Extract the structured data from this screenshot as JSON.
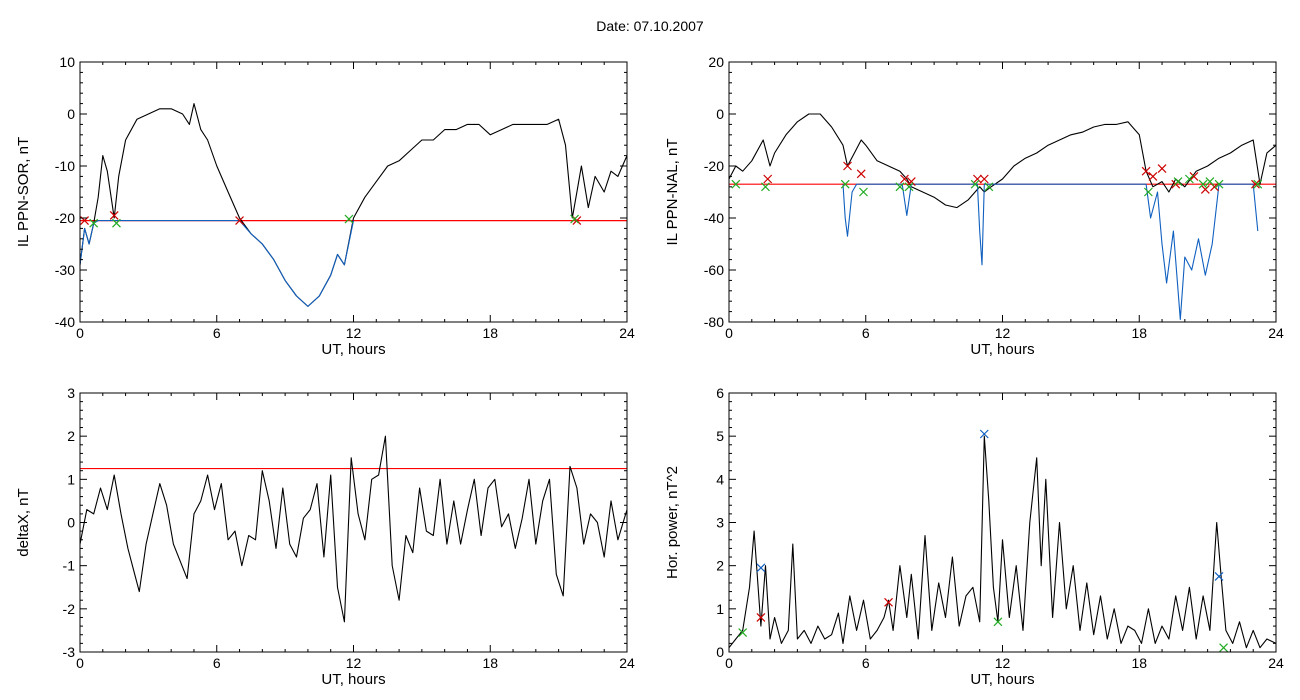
{
  "figure": {
    "title": "Date:  07.10.2007"
  },
  "chart_data": [
    {
      "type": "line",
      "ylabel": "IL PPN-SOR, nT",
      "xlabel": "UT, hours",
      "xlim": [
        0,
        24
      ],
      "ylim": [
        -40,
        10
      ],
      "xticks": [
        0,
        6,
        12,
        18,
        24
      ],
      "yticks": [
        -40,
        -30,
        -20,
        -10,
        0,
        10
      ],
      "threshold": -20.5,
      "series": [
        {
          "color": "#000000",
          "x": [
            0,
            0.2,
            0.4,
            0.6,
            0.8,
            1.0,
            1.2,
            1.5,
            1.7,
            2.0,
            2.5,
            3.0,
            3.5,
            4.0,
            4.5,
            4.8,
            5.0,
            5.3,
            5.6,
            6.0,
            6.5,
            7.0,
            7.5,
            8.0,
            8.5,
            9.0,
            9.5,
            10.0,
            10.5,
            11.0,
            11.3,
            11.6,
            12.0,
            12.5,
            13.0,
            13.5,
            14.0,
            14.5,
            15.0,
            15.5,
            16.0,
            16.5,
            17.0,
            17.5,
            18.0,
            18.5,
            19.0,
            19.5,
            20.0,
            20.5,
            21.0,
            21.3,
            21.6,
            21.8,
            22.0,
            22.3,
            22.6,
            23.0,
            23.3,
            23.6,
            24.0
          ],
          "y": [
            -29,
            -22,
            -25,
            -21,
            -16,
            -8,
            -11,
            -20,
            -12,
            -5,
            -1,
            0,
            1,
            1,
            0,
            -2,
            2,
            -3,
            -5,
            -10,
            -15,
            -20,
            -23,
            -25,
            -28,
            -32,
            -35,
            -37,
            -35,
            -31,
            -27,
            -29,
            -20,
            -16,
            -13,
            -10,
            -9,
            -7,
            -5,
            -5,
            -3,
            -3,
            -2,
            -2,
            -4,
            -3,
            -2,
            -2,
            -2,
            -2,
            -1,
            -6,
            -20,
            -15,
            -10,
            -18,
            -12,
            -15,
            -11,
            -12,
            -8
          ]
        },
        {
          "color": "#1060c0",
          "x": [
            0,
            0.2,
            0.4,
            0.6,
            0.8,
            7.0,
            7.5,
            8.0,
            8.5,
            9.0,
            9.5,
            10.0,
            10.5,
            11.0,
            11.3,
            11.6,
            12.0
          ],
          "y": [
            -29,
            -22,
            -25,
            -21,
            -20.5,
            -20.5,
            -23,
            -25,
            -28,
            -32,
            -35,
            -37,
            -35,
            -31,
            -27,
            -29,
            -20.5
          ]
        }
      ],
      "markers": [
        {
          "color": "#cc0000",
          "x": [
            0.2,
            1.5,
            7.0,
            21.8
          ],
          "y": [
            -20.5,
            -19.5,
            -20.5,
            -20.5
          ]
        },
        {
          "color": "#22aa22",
          "x": [
            0.6,
            1.6,
            11.8,
            21.7
          ],
          "y": [
            -21,
            -21,
            -20.2,
            -20.2
          ]
        }
      ]
    },
    {
      "type": "line",
      "ylabel": "IL PPN-NAL, nT",
      "xlabel": "UT, hours",
      "xlim": [
        0,
        24
      ],
      "ylim": [
        -80,
        20
      ],
      "xticks": [
        0,
        6,
        12,
        18,
        24
      ],
      "yticks": [
        -80,
        -60,
        -40,
        -20,
        0,
        20
      ],
      "threshold": -27,
      "series": [
        {
          "color": "#000000",
          "x": [
            0,
            0.3,
            0.6,
            1.0,
            1.5,
            1.8,
            2.0,
            2.5,
            3.0,
            3.5,
            4.0,
            4.5,
            5.0,
            5.2,
            5.5,
            5.8,
            6.0,
            6.5,
            7.0,
            7.5,
            7.8,
            8.0,
            8.5,
            9.0,
            9.5,
            10.0,
            10.5,
            11.0,
            11.2,
            11.5,
            12.0,
            12.5,
            13.0,
            13.5,
            14.0,
            14.5,
            15.0,
            15.5,
            16.0,
            16.5,
            17.0,
            17.5,
            18.0,
            18.3,
            18.6,
            19.0,
            19.3,
            19.6,
            20.0,
            20.5,
            21.0,
            21.5,
            22.0,
            22.5,
            23.0,
            23.3,
            23.6,
            24.0
          ],
          "y": [
            -25,
            -20,
            -22,
            -18,
            -10,
            -20,
            -15,
            -8,
            -3,
            0,
            0,
            -5,
            -12,
            -20,
            -15,
            -10,
            -12,
            -18,
            -20,
            -22,
            -25,
            -28,
            -30,
            -32,
            -35,
            -36,
            -33,
            -28,
            -30,
            -28,
            -25,
            -20,
            -17,
            -15,
            -12,
            -10,
            -8,
            -7,
            -5,
            -4,
            -4,
            -3,
            -8,
            -22,
            -28,
            -26,
            -30,
            -25,
            -28,
            -22,
            -20,
            -17,
            -15,
            -12,
            -10,
            -27,
            -15,
            -12
          ]
        },
        {
          "color": "#1060c0",
          "x": [
            5.0,
            5.1,
            5.2,
            5.4,
            5.6,
            7.6,
            7.8,
            8.0,
            10.9,
            11.0,
            11.1,
            11.2,
            18.3,
            18.5,
            18.8,
            19.0,
            19.2,
            19.5,
            19.8,
            20.0,
            20.3,
            20.6,
            20.9,
            21.2,
            21.5,
            23.0,
            23.2
          ],
          "y": [
            -27,
            -40,
            -47,
            -30,
            -27,
            -27,
            -39,
            -27,
            -27,
            -45,
            -58,
            -27,
            -27,
            -40,
            -30,
            -50,
            -65,
            -45,
            -79,
            -55,
            -60,
            -48,
            -62,
            -50,
            -27,
            -27,
            -45
          ]
        }
      ],
      "markers": [
        {
          "color": "#cc0000",
          "x": [
            1.7,
            5.2,
            5.8,
            7.7,
            8.0,
            10.9,
            11.2,
            18.3,
            18.6,
            19.0,
            19.6,
            20.4,
            20.9,
            21.3,
            23.1
          ],
          "y": [
            -25,
            -20,
            -23,
            -25,
            -26,
            -25,
            -25,
            -22,
            -24,
            -21,
            -27,
            -24,
            -29,
            -28,
            -27
          ]
        },
        {
          "color": "#22aa22",
          "x": [
            0.3,
            1.6,
            5.1,
            5.9,
            7.5,
            7.9,
            10.8,
            11.4,
            18.4,
            19.7,
            20.2,
            20.8,
            21.1,
            21.5,
            23.2
          ],
          "y": [
            -27,
            -28,
            -27,
            -30,
            -28,
            -28,
            -27,
            -28,
            -30,
            -26,
            -25,
            -27,
            -26,
            -27,
            -27
          ]
        }
      ]
    },
    {
      "type": "line",
      "ylabel": "deltaX, nT",
      "xlabel": "UT, hours",
      "xlim": [
        0,
        24
      ],
      "ylim": [
        -3,
        3
      ],
      "xticks": [
        0,
        6,
        12,
        18,
        24
      ],
      "yticks": [
        -3,
        -2,
        -1,
        0,
        1,
        2,
        3
      ],
      "threshold": 1.25,
      "series": [
        {
          "color": "#000000",
          "x": [
            0,
            0.3,
            0.6,
            0.9,
            1.2,
            1.5,
            1.8,
            2.1,
            2.4,
            2.6,
            2.9,
            3.2,
            3.5,
            3.8,
            4.1,
            4.4,
            4.7,
            5.0,
            5.3,
            5.6,
            5.9,
            6.2,
            6.5,
            6.8,
            7.1,
            7.4,
            7.7,
            8.0,
            8.3,
            8.6,
            8.9,
            9.2,
            9.5,
            9.8,
            10.1,
            10.4,
            10.7,
            11.0,
            11.3,
            11.6,
            11.9,
            12.2,
            12.5,
            12.8,
            13.1,
            13.4,
            13.7,
            14.0,
            14.3,
            14.6,
            14.9,
            15.2,
            15.5,
            15.8,
            16.1,
            16.4,
            16.7,
            17.0,
            17.3,
            17.6,
            17.9,
            18.2,
            18.5,
            18.8,
            19.1,
            19.4,
            19.7,
            20.0,
            20.3,
            20.6,
            20.9,
            21.2,
            21.5,
            21.8,
            22.1,
            22.4,
            22.7,
            23.0,
            23.3,
            23.6,
            24.0
          ],
          "y": [
            -0.5,
            0.3,
            0.2,
            0.8,
            0.3,
            1.1,
            0.2,
            -0.6,
            -1.2,
            -1.6,
            -0.5,
            0.2,
            0.9,
            0.4,
            -0.5,
            -0.9,
            -1.3,
            0.2,
            0.5,
            1.1,
            0.3,
            0.9,
            -0.4,
            -0.2,
            -1.0,
            -0.3,
            -0.4,
            1.2,
            0.5,
            -0.6,
            0.8,
            -0.5,
            -0.8,
            0.1,
            0.3,
            0.9,
            -0.8,
            1.1,
            -1.5,
            -2.3,
            1.5,
            0.2,
            -0.4,
            1.0,
            1.1,
            2.0,
            -1.0,
            -1.8,
            -0.3,
            -0.7,
            0.8,
            -0.2,
            -0.3,
            1.0,
            -0.5,
            0.5,
            -0.5,
            0.3,
            1.0,
            -0.3,
            0.8,
            1.0,
            -0.1,
            0.2,
            -0.6,
            0.1,
            1.0,
            -0.5,
            0.5,
            1.0,
            -1.2,
            -1.7,
            1.3,
            0.8,
            -0.5,
            0.2,
            0.0,
            -0.8,
            0.5,
            -0.4,
            0.3
          ]
        }
      ],
      "markers": []
    },
    {
      "type": "line",
      "ylabel": "Hor. power, nT^2",
      "xlabel": "UT, hours",
      "xlim": [
        0,
        24
      ],
      "ylim": [
        0,
        6
      ],
      "xticks": [
        0,
        6,
        12,
        18,
        24
      ],
      "yticks": [
        0,
        1,
        2,
        3,
        4,
        5,
        6
      ],
      "threshold": null,
      "series": [
        {
          "color": "#000000",
          "x": [
            0,
            0.3,
            0.6,
            0.9,
            1.1,
            1.4,
            1.6,
            1.8,
            2.0,
            2.3,
            2.6,
            2.8,
            3.0,
            3.3,
            3.6,
            3.9,
            4.2,
            4.5,
            4.8,
            5.0,
            5.3,
            5.6,
            5.9,
            6.2,
            6.5,
            6.8,
            7.0,
            7.2,
            7.5,
            7.8,
            8.0,
            8.3,
            8.6,
            8.9,
            9.2,
            9.5,
            9.8,
            10.1,
            10.4,
            10.7,
            11.0,
            11.2,
            11.4,
            11.6,
            11.8,
            12.0,
            12.3,
            12.6,
            12.9,
            13.2,
            13.5,
            13.7,
            13.9,
            14.2,
            14.5,
            14.8,
            15.1,
            15.4,
            15.7,
            16.0,
            16.3,
            16.6,
            16.9,
            17.2,
            17.5,
            17.8,
            18.1,
            18.4,
            18.7,
            19.0,
            19.3,
            19.6,
            19.9,
            20.2,
            20.5,
            20.8,
            21.1,
            21.4,
            21.6,
            21.8,
            22.1,
            22.4,
            22.7,
            23.0,
            23.3,
            23.6,
            24.0
          ],
          "y": [
            0.1,
            0.3,
            0.5,
            1.5,
            2.8,
            0.6,
            2.0,
            0.3,
            0.8,
            0.2,
            0.5,
            2.5,
            0.3,
            0.5,
            0.2,
            0.6,
            0.3,
            0.4,
            0.9,
            0.2,
            1.3,
            0.5,
            1.2,
            0.3,
            0.5,
            0.8,
            1.2,
            0.5,
            2.0,
            0.8,
            1.8,
            0.3,
            2.7,
            0.5,
            1.6,
            0.8,
            2.2,
            0.6,
            1.3,
            1.5,
            0.7,
            5.0,
            3.5,
            1.5,
            0.7,
            2.6,
            0.8,
            2.0,
            0.5,
            3.0,
            4.5,
            2.0,
            4.0,
            0.8,
            3.0,
            1.0,
            2.0,
            0.5,
            1.6,
            0.4,
            1.3,
            0.3,
            1.0,
            0.2,
            0.6,
            0.5,
            0.2,
            1.0,
            0.2,
            0.6,
            0.3,
            1.3,
            0.5,
            1.5,
            0.3,
            1.3,
            0.5,
            3.0,
            1.7,
            0.5,
            0.2,
            0.7,
            0.1,
            0.5,
            0.1,
            0.3,
            0.2
          ]
        }
      ],
      "markers": [
        {
          "color": "#1060c0",
          "x": [
            1.4,
            11.2,
            21.5
          ],
          "y": [
            1.95,
            5.05,
            1.75
          ]
        },
        {
          "color": "#cc0000",
          "x": [
            1.4,
            7.0
          ],
          "y": [
            0.8,
            1.15
          ]
        },
        {
          "color": "#22aa22",
          "x": [
            0.6,
            11.8,
            21.7
          ],
          "y": [
            0.45,
            0.7,
            0.1
          ]
        }
      ]
    }
  ]
}
